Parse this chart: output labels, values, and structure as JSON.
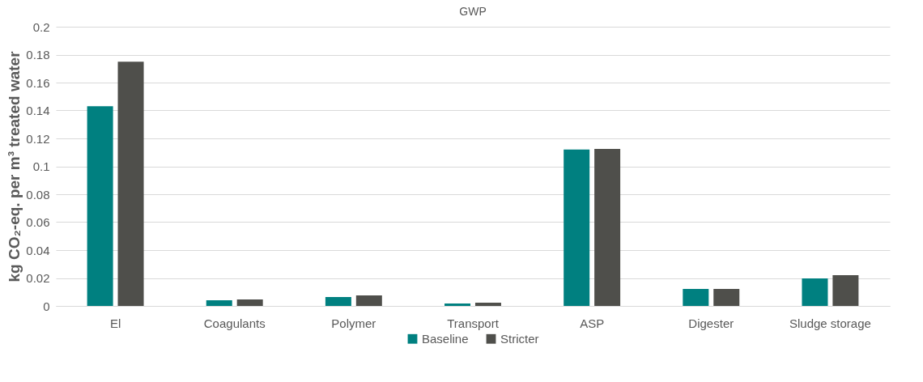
{
  "chart_data": {
    "type": "bar",
    "title": "GWP",
    "ylabel": "kg CO₂-eq. per m³ treated water",
    "categories": [
      "El",
      "Coagulants",
      "Polymer",
      "Transport",
      "ASP",
      "Digester",
      "Sludge storage"
    ],
    "series": [
      {
        "name": "Baseline",
        "color": "#008080",
        "values": [
          0.143,
          0.004,
          0.0064,
          0.0017,
          0.112,
          0.0122,
          0.0197
        ]
      },
      {
        "name": "Stricter",
        "color": "#4f4f4b",
        "values": [
          0.175,
          0.0046,
          0.0075,
          0.0023,
          0.1125,
          0.0122,
          0.022
        ]
      }
    ],
    "ylim": [
      0,
      0.2
    ],
    "yticks": [
      0,
      0.02,
      0.04,
      0.06,
      0.08,
      0.1,
      0.12,
      0.14,
      0.16,
      0.18,
      0.2
    ],
    "grid": "y",
    "legend": "bottom"
  }
}
